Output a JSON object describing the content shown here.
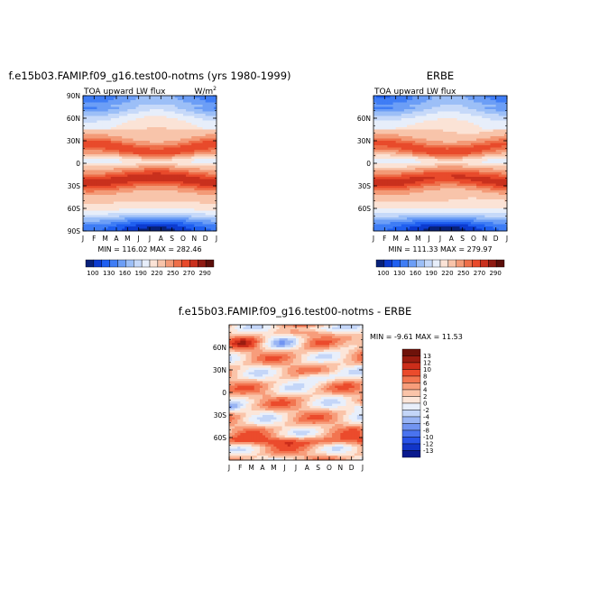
{
  "chart_data": [
    {
      "type": "heatmap",
      "title": "f.e15b03.FAMIP.f09_g16.test00-notms (yrs 1980-1999)",
      "subtitle_left": "TOA upward LW flux",
      "units": "W/m",
      "units_sup": "2",
      "stats": "MIN = 116.02  MAX = 282.46",
      "x_ticks": [
        "J",
        "F",
        "M",
        "A",
        "M",
        "J",
        "J",
        "A",
        "S",
        "O",
        "N",
        "D",
        "J"
      ],
      "y_ticks": [
        "90N",
        "60N",
        "30N",
        "0",
        "30S",
        "60S",
        "90S"
      ],
      "ylim": [
        -90,
        90
      ],
      "colorbar_labels": [
        "100",
        "130",
        "160",
        "190",
        "220",
        "250",
        "270",
        "290"
      ],
      "colorbar_levels": [
        100,
        115,
        130,
        145,
        160,
        175,
        190,
        205,
        220,
        235,
        250,
        260,
        270,
        280,
        290
      ],
      "model_max": 282.46,
      "model_min": 116.02
    },
    {
      "type": "heatmap",
      "title": "ERBE",
      "subtitle_left": "TOA upward LW flux",
      "stats": "MIN = 111.33  MAX = 279.97",
      "x_ticks": [
        "J",
        "F",
        "M",
        "A",
        "M",
        "J",
        "J",
        "A",
        "S",
        "O",
        "N",
        "D",
        "J"
      ],
      "y_ticks": [
        "60N",
        "30N",
        "0",
        "30S",
        "60S"
      ],
      "ylim": [
        -90,
        90
      ],
      "colorbar_labels": [
        "100",
        "130",
        "160",
        "190",
        "220",
        "250",
        "270",
        "290"
      ],
      "model_max": 279.97,
      "model_min": 111.33
    },
    {
      "type": "heatmap",
      "title": "f.e15b03.FAMIP.f09_g16.test00-notms - ERBE",
      "stats": "MIN = -9.61  MAX =  11.53",
      "x_ticks": [
        "J",
        "F",
        "M",
        "A",
        "M",
        "J",
        "J",
        "A",
        "S",
        "O",
        "N",
        "D",
        "J"
      ],
      "y_ticks": [
        "60N",
        "30N",
        "0",
        "30S",
        "60S"
      ],
      "ylim": [
        -90,
        90
      ],
      "colorbar_labels": [
        "13",
        "12",
        "10",
        "8",
        "6",
        "4",
        "2",
        "0",
        "-2",
        "-4",
        "-6",
        "-8",
        "-10",
        "-12",
        "-13"
      ],
      "diff_min": -9.61,
      "diff_max": 11.53
    }
  ],
  "colors": {
    "lw_scale": [
      "#08217a",
      "#0c3bd0",
      "#1f5ff0",
      "#3f7df5",
      "#6c9ef6",
      "#9cbff7",
      "#c6d9f9",
      "#e7eefa",
      "#fbe3d6",
      "#f8c4aa",
      "#f39a77",
      "#ee6f49",
      "#e84a2b",
      "#c9301d",
      "#8f1a12",
      "#5b0e0a"
    ],
    "diff_scale": [
      "#0a1a8e",
      "#1235c8",
      "#2853e8",
      "#4a73ef",
      "#7194f1",
      "#99b5f4",
      "#c4d6f8",
      "#e8effb",
      "#fce6d9",
      "#fac4a9",
      "#f79d7b",
      "#f27550",
      "#eb4b2c",
      "#cc2d1a",
      "#9a1c10",
      "#6e120a"
    ]
  }
}
